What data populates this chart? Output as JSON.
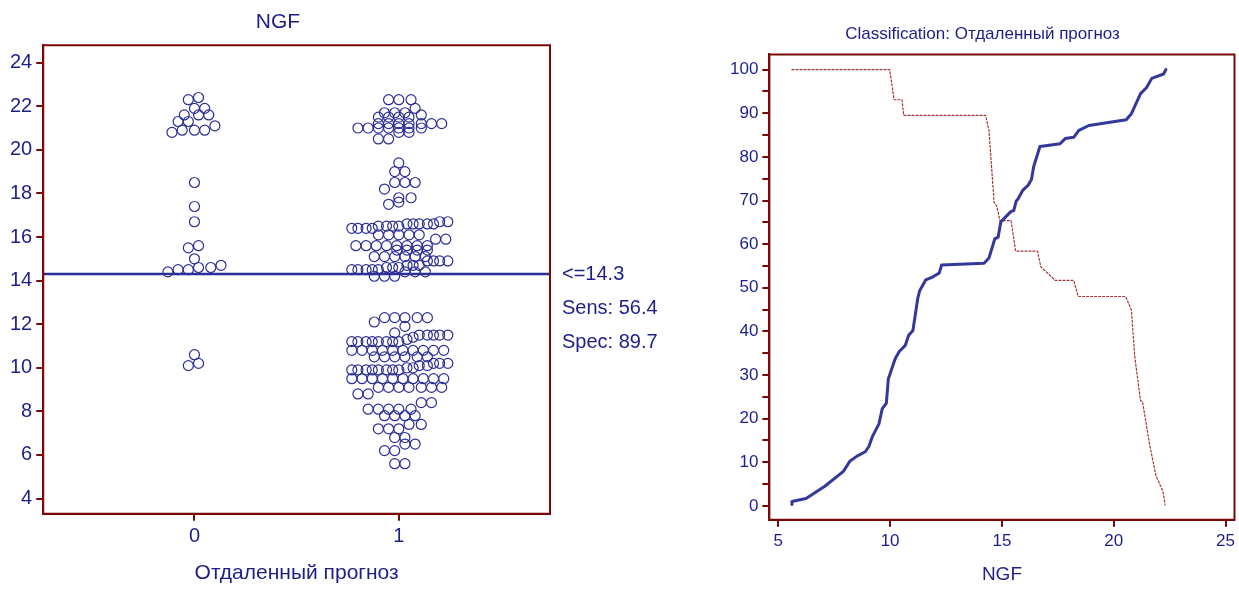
{
  "chart_data": [
    {
      "type": "scatter",
      "title": "NGF",
      "xlabel": "Отдаленный прогноз",
      "marker": "circle",
      "legend": false,
      "grid": false,
      "xlim": [
        -0.74,
        1.74
      ],
      "xticks": [
        0,
        1
      ],
      "ylim": [
        3.3,
        24.8
      ],
      "yticks": [
        4,
        6,
        8,
        10,
        12,
        14,
        16,
        18,
        20,
        22,
        24
      ],
      "ref_lines": [
        {
          "axis": "y",
          "value": 14.3,
          "label": "<=14.3",
          "color": "#2b2f96"
        }
      ],
      "annotations": [
        "Sens: 56.4",
        "Spec: 89.7"
      ],
      "series": [
        {
          "color": "#2b2f96",
          "x": [
            -0.03,
            0.02,
            0,
            0.05,
            -0.05,
            0.02,
            0.07,
            -0.08,
            -0.03,
            0.1,
            -0.11,
            -0.06,
            0,
            0.05,
            0,
            0,
            0,
            -0.03,
            0.02,
            0,
            -0.13,
            -0.08,
            -0.03,
            0.02,
            0.08,
            0.13,
            0,
            -0.03,
            0.02
          ],
          "values": [
            22.3,
            22.4,
            21.9,
            21.9,
            21.6,
            21.6,
            21.6,
            21.3,
            21.3,
            21.1,
            20.8,
            20.9,
            20.9,
            20.9,
            18.5,
            17.4,
            16.7,
            15.5,
            15.6,
            15.0,
            14.4,
            14.5,
            14.5,
            14.6,
            14.6,
            14.7,
            10.6,
            10.1,
            10.2
          ]
        },
        {
          "color": "#2b2f96",
          "x": [
            0.95,
            1.0,
            1.06,
            1.08,
            0.93,
            0.98,
            1.03,
            0.9,
            0.95,
            1.0,
            1.05,
            1.11,
            0.9,
            0.95,
            1.0,
            1.05,
            1.11,
            1.16,
            1.21,
            0.8,
            0.85,
            0.9,
            0.95,
            1.0,
            1.05,
            1.11,
            1.0,
            1.05,
            0.9,
            0.95
          ],
          "values": [
            22.3,
            22.3,
            22.3,
            21.9,
            21.7,
            21.7,
            21.7,
            21.5,
            21.5,
            21.5,
            21.5,
            21.6,
            21.2,
            21.2,
            21.2,
            21.2,
            21.2,
            21.2,
            21.2,
            21.0,
            21.0,
            21.0,
            21.0,
            21.0,
            21.0,
            21.0,
            20.8,
            20.8,
            20.5,
            20.5
          ]
        },
        {
          "color": "#2b2f96",
          "x": [
            1.0,
            0.98,
            1.03,
            0.98,
            1.03,
            1.08,
            0.93,
            1.0,
            1.06,
            1.0,
            0.95
          ],
          "values": [
            19.4,
            19.0,
            19.0,
            18.5,
            18.5,
            18.5,
            18.2,
            17.8,
            17.8,
            17.6,
            17.5
          ]
        },
        {
          "color": "#2b2f96",
          "x": [
            0.77,
            0.8,
            0.84,
            0.87,
            0.9,
            0.94,
            0.97,
            1.0,
            1.04,
            1.07,
            1.1,
            1.14,
            1.17,
            1.2,
            1.24,
            0.9,
            0.95,
            1.0,
            1.05,
            1.1,
            0.79,
            0.84,
            0.89,
            0.94,
            0.99,
            1.04,
            1.09,
            1.14,
            1.18,
            1.23,
            0.99,
            1.04,
            1.09,
            1.14,
            0.88,
            0.93,
            0.98,
            1.03,
            1.08,
            1.13,
            0.77,
            0.8,
            0.84,
            0.87,
            0.9,
            0.94,
            0.97,
            1.0,
            1.04,
            1.07,
            1.1,
            1.14,
            1.17,
            1.2,
            1.24,
            1.03,
            1.08,
            1.13,
            0.88,
            0.93,
            0.98
          ],
          "values": [
            16.4,
            16.4,
            16.4,
            16.4,
            16.5,
            16.5,
            16.5,
            16.5,
            16.6,
            16.6,
            16.6,
            16.6,
            16.6,
            16.7,
            16.7,
            16.1,
            16.1,
            16.1,
            16.1,
            16.1,
            15.6,
            15.6,
            15.6,
            15.6,
            15.6,
            15.6,
            15.6,
            15.6,
            15.9,
            15.9,
            15.4,
            15.4,
            15.4,
            15.4,
            15.1,
            15.1,
            15.1,
            15.1,
            15.1,
            15.1,
            14.5,
            14.5,
            14.5,
            14.5,
            14.5,
            14.6,
            14.6,
            14.6,
            14.7,
            14.7,
            14.7,
            14.9,
            14.9,
            14.9,
            14.9,
            14.4,
            14.4,
            14.4,
            14.2,
            14.2,
            14.2
          ]
        },
        {
          "color": "#2b2f96",
          "x": [
            0.88,
            0.93,
            0.98,
            1.03,
            1.09,
            1.14,
            1.03,
            0.98,
            0.77,
            0.8,
            0.84,
            0.87,
            0.9,
            0.94,
            0.97,
            1.0,
            1.04,
            1.07,
            1.1,
            1.14,
            1.17,
            1.2,
            1.24,
            0.77,
            0.82,
            0.87,
            0.92,
            0.97,
            1.02,
            1.07,
            1.12,
            1.17,
            1.22,
            0.88,
            0.93,
            0.98,
            1.03,
            1.09,
            1.14,
            0.77,
            0.8,
            0.84,
            0.87,
            0.9,
            0.94,
            0.97,
            1.0,
            1.04,
            1.07,
            1.1,
            1.14,
            1.17,
            1.2,
            1.24,
            0.77,
            0.82,
            0.87,
            0.92,
            0.97,
            1.02,
            1.07,
            1.12,
            1.17,
            1.22,
            0.9,
            0.95,
            1.0,
            1.05,
            1.11,
            1.16,
            1.21,
            0.8,
            0.85,
            1.11,
            1.16,
            0.85,
            0.9,
            0.95,
            1.0,
            1.06,
            0.93,
            0.98,
            1.03,
            1.08,
            1.05,
            1.11,
            0.9,
            0.95,
            1.0,
            0.98,
            1.03,
            1.03,
            1.08,
            0.93,
            0.98,
            0.98,
            1.03
          ],
          "values": [
            12.1,
            12.3,
            12.3,
            12.3,
            12.3,
            12.3,
            11.9,
            11.6,
            11.2,
            11.2,
            11.2,
            11.2,
            11.2,
            11.2,
            11.2,
            11.2,
            11.3,
            11.4,
            11.5,
            11.5,
            11.5,
            11.5,
            11.5,
            10.8,
            10.8,
            10.8,
            10.8,
            10.8,
            10.8,
            10.8,
            10.8,
            10.8,
            10.8,
            10.5,
            10.5,
            10.5,
            10.5,
            10.5,
            10.5,
            9.9,
            9.9,
            9.9,
            9.9,
            9.9,
            9.9,
            9.9,
            9.9,
            10.0,
            10.0,
            10.1,
            10.1,
            10.2,
            10.2,
            10.2,
            9.5,
            9.5,
            9.5,
            9.5,
            9.5,
            9.5,
            9.5,
            9.5,
            9.5,
            9.5,
            9.1,
            9.1,
            9.1,
            9.1,
            9.1,
            9.1,
            9.1,
            8.8,
            8.8,
            8.4,
            8.4,
            8.1,
            8.1,
            8.1,
            8.1,
            8.1,
            7.8,
            7.8,
            7.8,
            7.8,
            7.4,
            7.4,
            7.2,
            7.2,
            7.2,
            6.8,
            6.8,
            6.5,
            6.5,
            6.2,
            6.2,
            5.6,
            5.6
          ]
        }
      ]
    },
    {
      "type": "line",
      "title": "Classification: Отдаленный прогноз",
      "xlabel": "NGF",
      "marker": "none",
      "legend": false,
      "grid": false,
      "xlim": [
        4.6,
        25.4
      ],
      "xticks": [
        5,
        10,
        15,
        20,
        25
      ],
      "ylim": [
        -3.2,
        103.5
      ],
      "yticks": [
        0,
        {
          "value": 5,
          "label": null
        },
        10,
        {
          "value": 15,
          "label": null
        },
        20,
        {
          "value": 25,
          "label": null
        },
        30,
        {
          "value": 35,
          "label": null
        },
        40,
        {
          "value": 45,
          "label": null
        },
        50,
        {
          "value": 55,
          "label": null
        },
        60,
        {
          "value": 65,
          "label": null
        },
        70,
        {
          "value": 75,
          "label": null
        },
        80,
        {
          "value": 85,
          "label": null
        },
        90,
        {
          "value": 95,
          "label": null
        },
        100
      ],
      "series": [
        {
          "color": "#34389a",
          "line_style": "solid",
          "x": [
            5.61,
            5.61,
            6.24,
            7.08,
            7.91,
            8.21,
            8.52,
            8.89,
            9.05,
            9.2,
            9.5,
            9.65,
            9.83,
            9.92,
            10.23,
            10.41,
            10.68,
            10.83,
            11.02,
            11.24,
            11.32,
            11.59,
            11.92,
            12.2,
            12.3,
            14.2,
            14.42,
            14.68,
            14.83,
            14.95,
            15.41,
            15.53,
            15.64,
            15.71,
            15.94,
            16.17,
            16.32,
            16.42,
            16.7,
            17.6,
            17.83,
            18.21,
            18.44,
            18.89,
            20.56,
            20.79,
            21.2,
            21.47,
            21.7,
            22.23,
            22.33
          ],
          "values": [
            0.3,
            1,
            1.7,
            4.5,
            7.9,
            10.3,
            11.4,
            12.4,
            13.6,
            15.8,
            18.8,
            22.3,
            23.5,
            29.1,
            33.8,
            35.4,
            36.8,
            39.1,
            40.2,
            47.7,
            49.3,
            51.8,
            52.5,
            53.4,
            55.2,
            55.6,
            56.8,
            61.2,
            61.6,
            65.1,
            67.5,
            67.7,
            69.9,
            70.3,
            72.4,
            73.5,
            74.8,
            77.8,
            82.4,
            83,
            84.2,
            84.5,
            86.1,
            87.2,
            88.5,
            89.9,
            94.5,
            95.9,
            98,
            99,
            100
          ]
        },
        {
          "color": "#a83232",
          "line_style": "dotted",
          "x": [
            5.61,
            9.98,
            10.18,
            10.53,
            10.61,
            14.27,
            14.42,
            14.65,
            14.77,
            14.91,
            15.41,
            15.61,
            16.59,
            16.74,
            17.38,
            18.21,
            18.41,
            20.53,
            20.79,
            20.94,
            21.2,
            21.29,
            21.62,
            21.89,
            22.2,
            22.3
          ],
          "values": [
            100,
            100,
            93.1,
            93.1,
            89.5,
            89.5,
            86.1,
            69.5,
            68.7,
            65.4,
            65.4,
            58.4,
            58.4,
            54.8,
            51.7,
            51.7,
            48,
            48,
            44.9,
            34.2,
            24.1,
            23.8,
            13.6,
            6.9,
            3.3,
            0.2
          ]
        }
      ]
    }
  ]
}
